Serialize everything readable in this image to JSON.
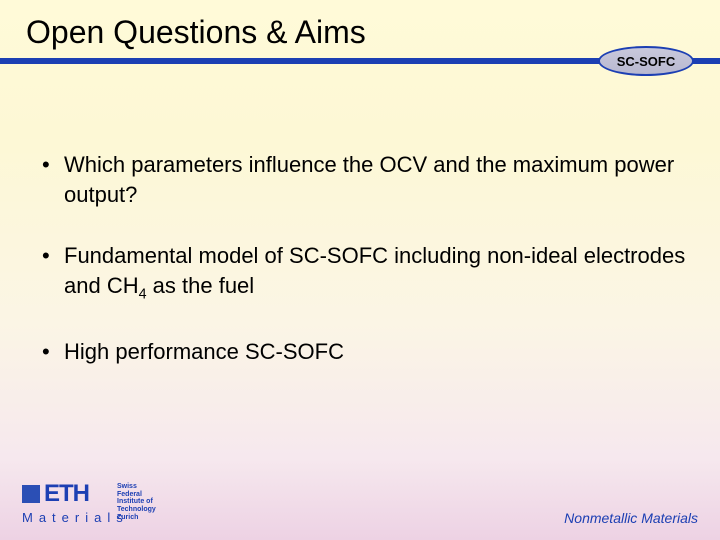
{
  "title": "Open Questions & Aims",
  "badge": "SC-SOFC",
  "bullets": {
    "b1": "Which parameters influence the OCV and the maximum power output?",
    "b2_pre": "Fundamental model of SC-SOFC including non-ideal electrodes and CH",
    "b2_sub": "4",
    "b2_post": " as the fuel",
    "b3": "High performance SC-SOFC"
  },
  "footer": {
    "eth": "ETH",
    "inst_l1": "Swiss Federal",
    "inst_l2": "Institute of Technology",
    "inst_l3": "Zurich",
    "materials": "Materials",
    "nonmetallic": "Nonmetallic Materials"
  },
  "colors": {
    "accent": "#1c3fb3",
    "bg_top": "#fffad8",
    "bg_bottom": "#edd2e4"
  }
}
